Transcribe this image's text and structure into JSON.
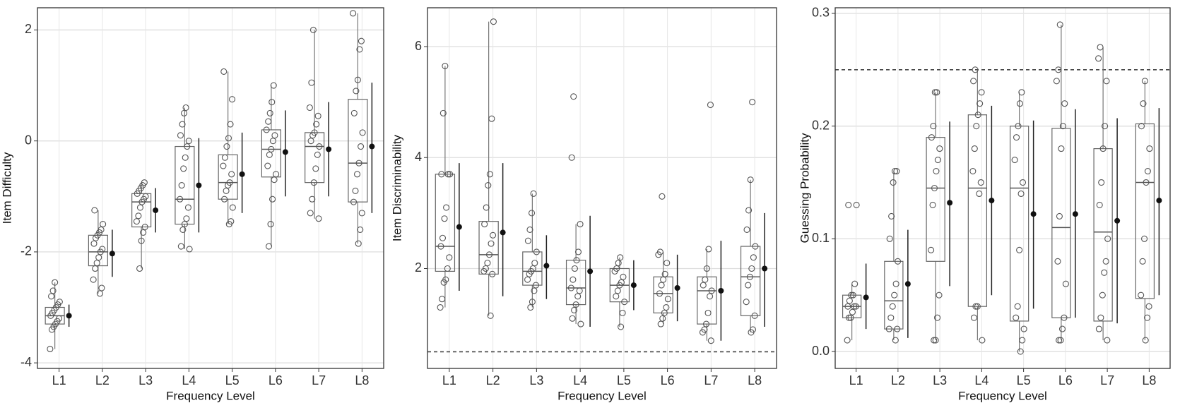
{
  "chart_data": [
    {
      "type": "boxplot",
      "ylabel": "Item Difficulty",
      "xlabel": "Frequency Level",
      "categories": [
        "L1",
        "L2",
        "L3",
        "L4",
        "L5",
        "L6",
        "L7",
        "L8"
      ],
      "ylim": [
        -4.1,
        2.4
      ],
      "yticks": [
        -4,
        -2,
        0,
        2
      ],
      "grid": true,
      "boxes": [
        {
          "low": -3.75,
          "q1": -3.3,
          "median": -3.15,
          "q3": -3.0,
          "high": -2.55,
          "mean": -3.15,
          "mean_low": -3.35,
          "mean_high": -2.95,
          "points": [
            -3.75,
            -3.4,
            -3.35,
            -3.3,
            -3.25,
            -3.2,
            -3.15,
            -3.1,
            -3.05,
            -3.0,
            -2.95,
            -2.9,
            -2.8,
            -2.7,
            -2.55
          ]
        },
        {
          "low": -2.75,
          "q1": -2.25,
          "median": -2.0,
          "q3": -1.7,
          "high": -1.25,
          "mean": -2.03,
          "mean_low": -2.45,
          "mean_high": -1.6,
          "points": [
            -2.75,
            -2.65,
            -2.5,
            -2.3,
            -2.2,
            -2.1,
            -2.0,
            -1.95,
            -1.85,
            -1.75,
            -1.7,
            -1.65,
            -1.6,
            -1.5,
            -1.25
          ]
        },
        {
          "low": -2.3,
          "q1": -1.55,
          "median": -1.1,
          "q3": -0.95,
          "high": -0.75,
          "mean": -1.25,
          "mean_low": -1.65,
          "mean_high": -0.85,
          "points": [
            -2.3,
            -1.8,
            -1.65,
            -1.55,
            -1.45,
            -1.35,
            -1.2,
            -1.1,
            -1.05,
            -1.0,
            -0.95,
            -0.9,
            -0.85,
            -0.8,
            -0.75
          ]
        },
        {
          "low": -1.95,
          "q1": -1.5,
          "median": -1.05,
          "q3": -0.1,
          "high": 0.6,
          "mean": -0.8,
          "mean_low": -1.65,
          "mean_high": 0.05,
          "points": [
            -1.95,
            -1.9,
            -1.6,
            -1.5,
            -1.4,
            -1.2,
            -1.05,
            -0.8,
            -0.5,
            -0.3,
            -0.1,
            0,
            0.1,
            0.3,
            0.5,
            0.6
          ]
        },
        {
          "low": -1.5,
          "q1": -1.05,
          "median": -0.75,
          "q3": -0.25,
          "high": 1.25,
          "mean": -0.6,
          "mean_low": -1.3,
          "mean_high": 0.15,
          "points": [
            -1.5,
            -1.45,
            -1.2,
            -1.05,
            -0.9,
            -0.8,
            -0.75,
            -0.6,
            -0.45,
            -0.3,
            -0.1,
            0.05,
            0.3,
            0.75,
            1.25
          ]
        },
        {
          "low": -1.9,
          "q1": -0.65,
          "median": -0.15,
          "q3": 0.2,
          "high": 1.0,
          "mean": -0.2,
          "mean_low": -1.0,
          "mean_high": 0.55,
          "points": [
            -1.9,
            -1.5,
            -1.05,
            -0.7,
            -0.6,
            -0.45,
            -0.25,
            -0.15,
            0,
            0.1,
            0.2,
            0.35,
            0.5,
            0.7,
            1.0
          ]
        },
        {
          "low": -1.4,
          "q1": -0.75,
          "median": -0.1,
          "q3": 0.15,
          "high": 2.0,
          "mean": -0.15,
          "mean_low": -1.0,
          "mean_high": 0.7,
          "points": [
            -1.4,
            -1.3,
            -1.05,
            -0.75,
            -0.5,
            -0.25,
            -0.1,
            0,
            0.1,
            0.15,
            0.3,
            0.45,
            0.6,
            1.05,
            2.0
          ]
        },
        {
          "low": -1.85,
          "q1": -1.1,
          "median": -0.4,
          "q3": 0.75,
          "high": 2.3,
          "mean": -0.1,
          "mean_low": -1.3,
          "mean_high": 1.05,
          "points": [
            -1.85,
            -1.6,
            -1.3,
            -1.1,
            -0.9,
            -0.6,
            -0.4,
            -0.1,
            0.15,
            0.5,
            0.9,
            1.1,
            1.65,
            1.8,
            2.3
          ]
        }
      ]
    },
    {
      "type": "boxplot",
      "ylabel": "Item Discriminability",
      "xlabel": "Frequency Level",
      "categories": [
        "L1",
        "L2",
        "L3",
        "L4",
        "L5",
        "L6",
        "L7",
        "L8"
      ],
      "ylim": [
        0.2,
        6.7
      ],
      "yticks": [
        2,
        4,
        6
      ],
      "grid": true,
      "reference_line": 0.5,
      "boxes": [
        {
          "low": 1.3,
          "q1": 1.95,
          "median": 2.4,
          "q3": 3.7,
          "high": 5.65,
          "mean": 2.75,
          "mean_low": 1.6,
          "mean_high": 3.9,
          "points": [
            1.3,
            1.45,
            1.75,
            1.8,
            2.0,
            2.2,
            2.4,
            2.55,
            2.9,
            3.1,
            3.7,
            3.7,
            3.7,
            4.8,
            5.65
          ]
        },
        {
          "low": 1.15,
          "q1": 1.9,
          "median": 2.25,
          "q3": 2.85,
          "high": 6.45,
          "mean": 2.65,
          "mean_low": 1.5,
          "mean_high": 3.9,
          "points": [
            1.15,
            1.9,
            1.95,
            2.0,
            2.1,
            2.25,
            2.45,
            2.6,
            2.8,
            3.1,
            3.5,
            3.7,
            4.7,
            6.45
          ]
        },
        {
          "low": 1.3,
          "q1": 1.7,
          "median": 1.95,
          "q3": 2.3,
          "high": 3.35,
          "mean": 2.05,
          "mean_low": 1.45,
          "mean_high": 2.6,
          "points": [
            1.3,
            1.4,
            1.6,
            1.7,
            1.8,
            1.9,
            1.95,
            2.0,
            2.1,
            2.3,
            2.5,
            2.7,
            3.0,
            3.35
          ]
        },
        {
          "low": 1.0,
          "q1": 1.35,
          "median": 1.65,
          "q3": 2.15,
          "high": 2.8,
          "mean": 1.95,
          "mean_low": 0.95,
          "mean_high": 2.95,
          "points": [
            1.0,
            1.1,
            1.25,
            1.35,
            1.5,
            1.6,
            1.65,
            1.8,
            2.0,
            2.15,
            2.3,
            2.8,
            4.0,
            5.1
          ]
        },
        {
          "low": 0.95,
          "q1": 1.4,
          "median": 1.7,
          "q3": 2.0,
          "high": 2.2,
          "mean": 1.7,
          "mean_low": 1.25,
          "mean_high": 2.15,
          "points": [
            0.95,
            1.2,
            1.4,
            1.5,
            1.6,
            1.7,
            1.75,
            1.85,
            1.95,
            2.0,
            2.1,
            2.2
          ]
        },
        {
          "low": 1.0,
          "q1": 1.2,
          "median": 1.55,
          "q3": 1.85,
          "high": 2.3,
          "mean": 1.65,
          "mean_low": 1.05,
          "mean_high": 2.25,
          "points": [
            1.0,
            1.1,
            1.2,
            1.3,
            1.45,
            1.55,
            1.7,
            1.8,
            1.9,
            2.1,
            2.25,
            2.3,
            3.3
          ]
        },
        {
          "low": 0.7,
          "q1": 1.0,
          "median": 1.6,
          "q3": 1.85,
          "high": 2.35,
          "mean": 1.6,
          "mean_low": 0.7,
          "mean_high": 2.5,
          "points": [
            0.7,
            0.85,
            0.9,
            1.0,
            1.2,
            1.5,
            1.6,
            1.7,
            1.8,
            2.0,
            2.35,
            4.95
          ]
        },
        {
          "low": 0.85,
          "q1": 1.15,
          "median": 1.85,
          "q3": 2.4,
          "high": 3.6,
          "mean": 2.0,
          "mean_low": 0.95,
          "mean_high": 3.0,
          "points": [
            0.85,
            0.9,
            1.15,
            1.4,
            1.7,
            1.85,
            2.0,
            2.2,
            2.4,
            2.7,
            3.05,
            3.6,
            5.0
          ]
        }
      ]
    },
    {
      "type": "boxplot",
      "ylabel": "Guessing Probability",
      "xlabel": "Frequency Level",
      "categories": [
        "L1",
        "L2",
        "L3",
        "L4",
        "L5",
        "L6",
        "L7",
        "L8"
      ],
      "ylim": [
        -0.015,
        0.305
      ],
      "yticks": [
        {
          "value": 0,
          "label": "0.0"
        },
        0.1,
        0.2,
        0.3
      ],
      "grid": true,
      "reference_line": 0.25,
      "boxes": [
        {
          "low": 0.01,
          "q1": 0.03,
          "median": 0.04,
          "q3": 0.05,
          "high": 0.06,
          "mean": 0.048,
          "mean_low": 0.02,
          "mean_high": 0.078,
          "points": [
            0.01,
            0.03,
            0.03,
            0.035,
            0.04,
            0.04,
            0.04,
            0.045,
            0.05,
            0.05,
            0.06,
            0.13,
            0.13
          ]
        },
        {
          "low": 0.01,
          "q1": 0.02,
          "median": 0.045,
          "q3": 0.08,
          "high": 0.16,
          "mean": 0.06,
          "mean_low": 0.012,
          "mean_high": 0.108,
          "points": [
            0.01,
            0.02,
            0.02,
            0.03,
            0.04,
            0.05,
            0.06,
            0.08,
            0.1,
            0.12,
            0.15,
            0.16,
            0.16
          ]
        },
        {
          "low": 0.01,
          "q1": 0.08,
          "median": 0.145,
          "q3": 0.19,
          "high": 0.23,
          "mean": 0.132,
          "mean_low": 0.058,
          "mean_high": 0.204,
          "points": [
            0.01,
            0.01,
            0.03,
            0.05,
            0.09,
            0.13,
            0.145,
            0.16,
            0.17,
            0.18,
            0.19,
            0.2,
            0.23,
            0.23
          ]
        },
        {
          "low": 0.01,
          "q1": 0.04,
          "median": 0.145,
          "q3": 0.21,
          "high": 0.25,
          "mean": 0.134,
          "mean_low": 0.05,
          "mean_high": 0.218,
          "points": [
            0.01,
            0.03,
            0.04,
            0.04,
            0.14,
            0.15,
            0.16,
            0.18,
            0.2,
            0.21,
            0.22,
            0.23,
            0.24,
            0.25
          ]
        },
        {
          "low": 0,
          "q1": 0.027,
          "median": 0.145,
          "q3": 0.2,
          "high": 0.23,
          "mean": 0.122,
          "mean_low": 0.038,
          "mean_high": 0.205,
          "points": [
            0,
            0.01,
            0.02,
            0.03,
            0.04,
            0.09,
            0.14,
            0.15,
            0.17,
            0.19,
            0.2,
            0.22,
            0.23
          ]
        },
        {
          "low": 0.01,
          "q1": 0.03,
          "median": 0.11,
          "q3": 0.198,
          "high": 0.29,
          "mean": 0.122,
          "mean_low": 0.03,
          "mean_high": 0.215,
          "points": [
            0.01,
            0.01,
            0.02,
            0.03,
            0.06,
            0.08,
            0.12,
            0.18,
            0.2,
            0.22,
            0.24,
            0.25,
            0.29
          ]
        },
        {
          "low": 0.01,
          "q1": 0.027,
          "median": 0.106,
          "q3": 0.18,
          "high": 0.27,
          "mean": 0.116,
          "mean_low": 0.025,
          "mean_high": 0.207,
          "points": [
            0.01,
            0.02,
            0.03,
            0.05,
            0.07,
            0.08,
            0.1,
            0.13,
            0.15,
            0.18,
            0.2,
            0.24,
            0.26,
            0.27
          ]
        },
        {
          "low": 0.01,
          "q1": 0.047,
          "median": 0.15,
          "q3": 0.202,
          "high": 0.24,
          "mean": 0.134,
          "mean_low": 0.05,
          "mean_high": 0.216,
          "points": [
            0.01,
            0.03,
            0.04,
            0.05,
            0.08,
            0.1,
            0.15,
            0.16,
            0.18,
            0.2,
            0.22,
            0.24
          ]
        }
      ]
    }
  ]
}
